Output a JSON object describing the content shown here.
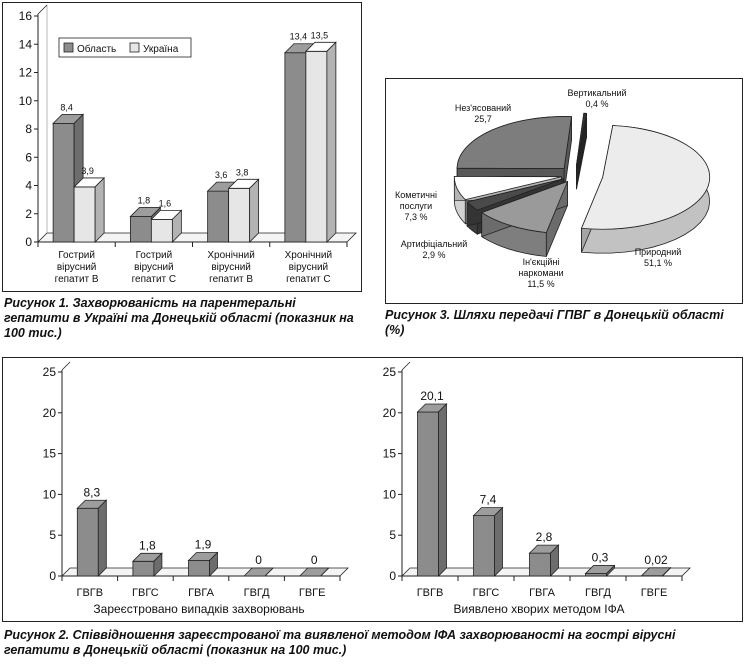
{
  "chart_data": [
    {
      "id": "fig1",
      "type": "bar",
      "caption": "Рисунок 1. Захворюваність на парентеральні гепатити в Україні та Донецькій області (показник на 100 тис.)",
      "categories": [
        [
          "Гострий",
          "вірусний",
          "гепатит В"
        ],
        [
          "Гострий",
          "вірусний",
          "гепатит С"
        ],
        [
          "Хронічний",
          "вірусний",
          "гепатит В"
        ],
        [
          "Хронічний",
          "вірусний",
          "гепатит С"
        ]
      ],
      "series": [
        {
          "name": "Область",
          "values": [
            8.4,
            1.8,
            3.6,
            13.4
          ],
          "labels": [
            "8,4",
            "1,8",
            "3,6",
            "13,4"
          ],
          "color": "#8c8c8c"
        },
        {
          "name": "Україна",
          "values": [
            3.9,
            1.6,
            3.8,
            13.5
          ],
          "labels": [
            "3,9",
            "1,6",
            "3,8",
            "13,5"
          ],
          "color": "#e6e6e6"
        }
      ],
      "ylim": [
        0,
        16
      ],
      "yticks": [
        "0",
        "2",
        "4",
        "6",
        "8",
        "10",
        "12",
        "14",
        "16"
      ],
      "grid": false,
      "legend": "top-left"
    },
    {
      "id": "fig3",
      "type": "pie",
      "caption": "Рисунок 3. Шляхи передачі ГПВГ в Донецькій області (%)",
      "slices": [
        {
          "label": "Природний",
          "value_label": "51,1 %",
          "value": 51.1,
          "color": "#ececec"
        },
        {
          "label": "Ін'єкційні наркомани",
          "value_label": "11,5 %",
          "value": 11.5,
          "color": "#9a9a9a"
        },
        {
          "label": "Артифіціальний",
          "value_label": "2,9 %",
          "value": 2.9,
          "color": "#4a4a4a"
        },
        {
          "label": "Кометичні послуги",
          "value_label": "7,3 %",
          "value": 7.3,
          "color": "#ffffff"
        },
        {
          "label": "Нез'ясований",
          "value_label": "25,7",
          "value": 25.7,
          "color": "#7d7d7d"
        },
        {
          "label": "Вертикальний",
          "value_label": "0,4 %",
          "value": 0.4,
          "color": "#333333"
        }
      ]
    },
    {
      "id": "fig2a",
      "type": "bar",
      "xlabel": "Зареєстровано випадків захворювань",
      "categories": [
        "ГВГВ",
        "ГВГС",
        "ГВГА",
        "ГВГД",
        "ГВГЕ"
      ],
      "values": [
        8.3,
        1.8,
        1.9,
        0,
        0
      ],
      "labels": [
        "8,3",
        "1,8",
        "1,9",
        "0",
        "0"
      ],
      "ylim": [
        0,
        25
      ],
      "yticks": [
        "0",
        "5",
        "10",
        "15",
        "20",
        "25"
      ],
      "color": "#8c8c8c"
    },
    {
      "id": "fig2b",
      "type": "bar",
      "xlabel": "Виявлено хворих методом ІФА",
      "categories": [
        "ГВГВ",
        "ГВГС",
        "ГВГА",
        "ГВГД",
        "ГВГЕ"
      ],
      "values": [
        20.1,
        7.4,
        2.8,
        0.3,
        0.02
      ],
      "labels": [
        "20,1",
        "7,4",
        "2,8",
        "0,3",
        "0,02"
      ],
      "ylim": [
        0,
        25
      ],
      "yticks": [
        "0",
        "5",
        "10",
        "15",
        "20",
        "25"
      ],
      "color": "#8c8c8c"
    }
  ],
  "figure2": {
    "caption": "Рисунок 2. Співвідношення зареєстрованої та виявленої методом ІФА захворюваності на гострі вірусні гепатити в Донецькій області (показник на 100 тис.)"
  }
}
